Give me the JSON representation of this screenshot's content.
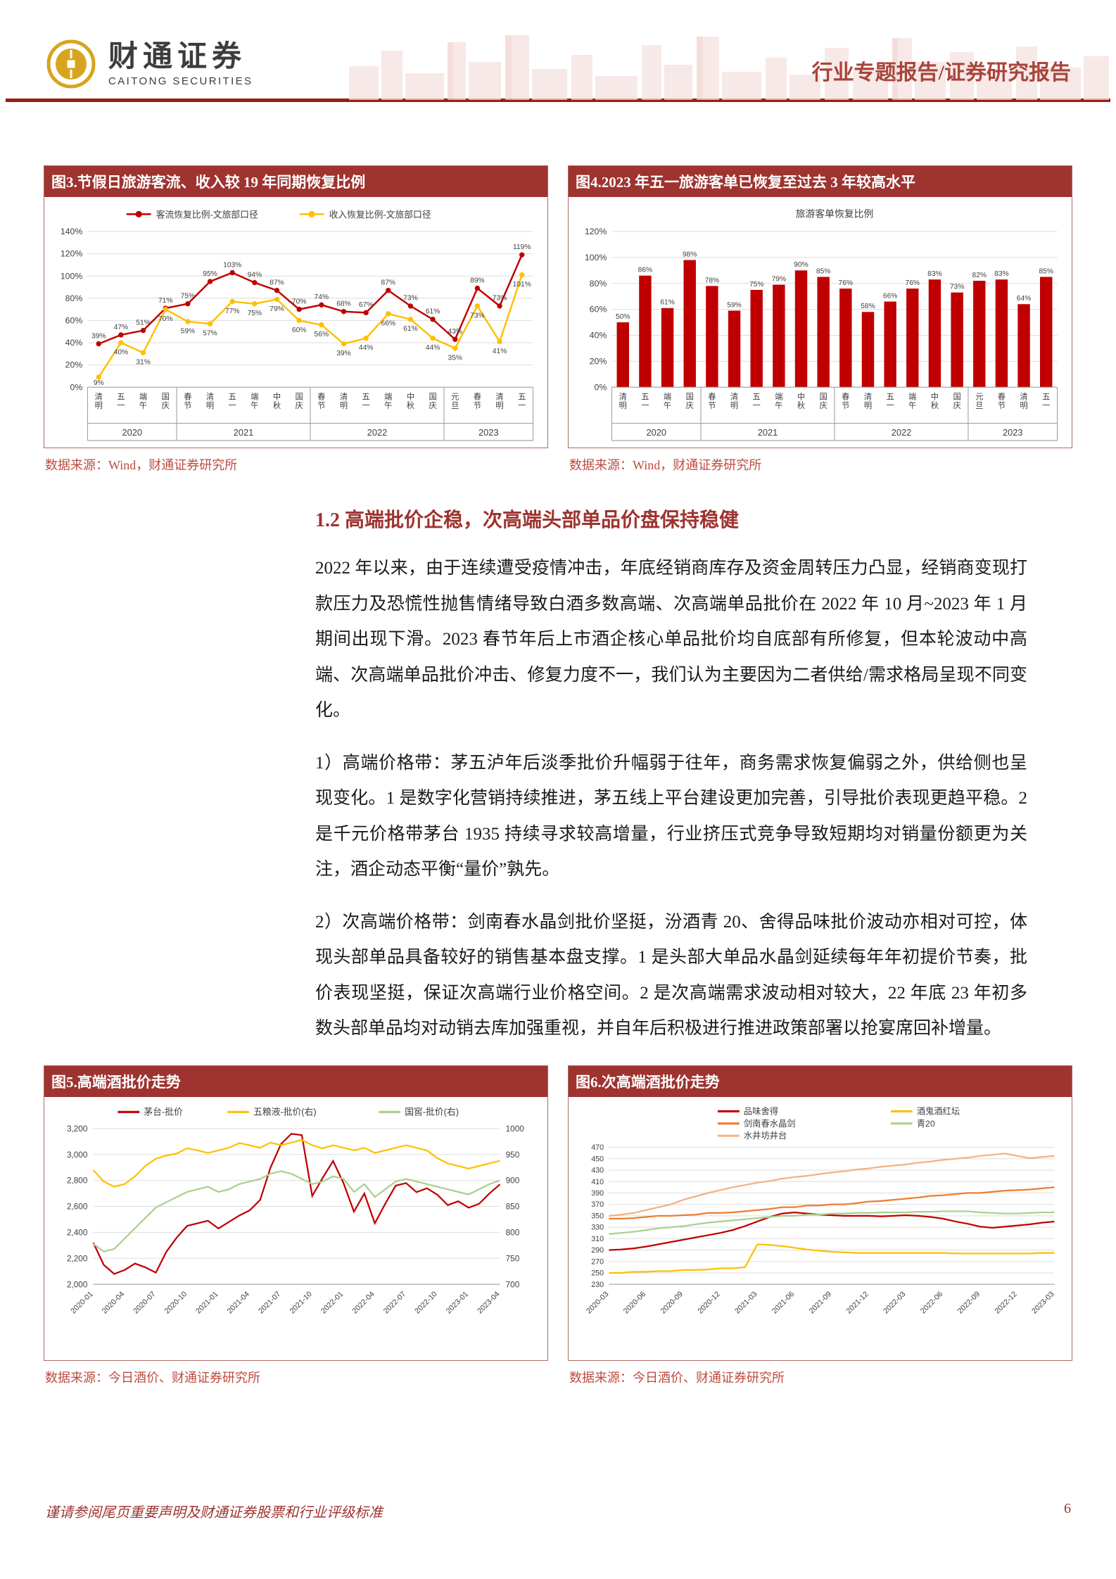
{
  "header": {
    "brand_cn": "财通证券",
    "brand_en": "CAITONG SECURITIES",
    "report_type": "行业专题报告/证券研究报告"
  },
  "section": {
    "heading": "1.2 高端批价企稳，次高端头部单品价盘保持稳健",
    "paragraphs": [
      "2022 年以来，由于连续遭受疫情冲击，年底经销商库存及资金周转压力凸显，经销商变现打款压力及恐慌性抛售情绪导致白酒多数高端、次高端单品批价在 2022 年 10 月~2023 年 1 月期间出现下滑。2023 春节年后上市酒企核心单品批价均自底部有所修复，但本轮波动中高端、次高端单品批价冲击、修复力度不一，我们认为主要因为二者供给/需求格局呈现不同变化。",
      "1）高端价格带：茅五泸年后淡季批价升幅弱于往年，商务需求恢复偏弱之外，供给侧也呈现变化。1 是数字化营销持续推进，茅五线上平台建设更加完善，引导批价表现更趋平稳。2 是千元价格带茅台 1935 持续寻求较高增量，行业挤压式竞争导致短期均对销量份额更为关注，酒企动态平衡“量价”孰先。",
      "2）次高端价格带：剑南春水晶剑批价坚挺，汾酒青 20、舍得品味批价波动亦相对可控，体现头部单品具备较好的销售基本盘支撑。1 是头部大单品水晶剑延续每年年初提价节奏，批价表现坚挺，保证次高端行业价格空间。2 是次高端需求波动相对较大，22 年底 23 年初多数头部单品均对动销去库加强重视，并自年后积极进行推进政策部署以抢宴席回补增量。"
    ]
  },
  "figures": {
    "fig3": {
      "title": "图3.节假日旅游客流、收入较 19 年同期恢复比例",
      "source": "数据来源：Wind，财通证券研究所"
    },
    "fig4": {
      "title": "图4.2023 年五一旅游客单已恢复至过去 3 年较高水平",
      "source": "数据来源：Wind，财通证券研究所"
    },
    "fig5": {
      "title": "图5.高端酒批价走势",
      "source": "数据来源：今日酒价、财通证券研究所"
    },
    "fig6": {
      "title": "图6.次高端酒批价走势",
      "source": "数据来源：今日酒价、财通证券研究所"
    }
  },
  "page": {
    "footer_note": "谨请参阅尾页重要声明及财通证券股票和行业评级标准",
    "number": "6"
  },
  "chart_data": [
    {
      "id": "fig3",
      "type": "line",
      "title": "节假日旅游客流、收入较19年同期恢复比例",
      "ylim": [
        0,
        140
      ],
      "ytick": 20,
      "yformat": "percent",
      "categories": [
        "清明",
        "五一",
        "端午",
        "国庆",
        "春节",
        "清明",
        "五一",
        "端午",
        "中秋",
        "国庆",
        "春节",
        "清明",
        "五一",
        "端午",
        "中秋",
        "国庆",
        "元旦",
        "春节",
        "清明",
        "五一"
      ],
      "year_groups": [
        {
          "label": "2020",
          "span": 4
        },
        {
          "label": "2021",
          "span": 6
        },
        {
          "label": "2022",
          "span": 6
        },
        {
          "label": "2023",
          "span": 4
        }
      ],
      "series": [
        {
          "name": "客流恢复比例-文旅部口径",
          "color": "#C00000",
          "values": [
            39,
            47,
            51,
            71,
            75,
            95,
            103,
            94,
            87,
            70,
            74,
            68,
            67,
            87,
            73,
            61,
            43,
            89,
            73,
            119
          ]
        },
        {
          "name": "收入恢复比例-文旅部口径",
          "color": "#FFC000",
          "values": [
            9,
            40,
            31,
            70,
            59,
            57,
            77,
            75,
            79,
            60,
            56,
            39,
            44,
            66,
            61,
            44,
            35,
            73,
            41,
            101
          ]
        }
      ]
    },
    {
      "id": "fig4",
      "type": "bar",
      "title": "旅游客单恢复比例",
      "ylim": [
        0,
        120
      ],
      "ytick": 20,
      "yformat": "percent",
      "color": "#C00000",
      "categories": [
        "清明",
        "五一",
        "端午",
        "国庆",
        "春节",
        "清明",
        "五一",
        "端午",
        "中秋",
        "国庆",
        "春节",
        "清明",
        "五一",
        "端午",
        "中秋",
        "国庆",
        "元旦",
        "春节",
        "清明",
        "五一"
      ],
      "year_groups": [
        {
          "label": "2020",
          "span": 4
        },
        {
          "label": "2021",
          "span": 6
        },
        {
          "label": "2022",
          "span": 6
        },
        {
          "label": "2023",
          "span": 4
        }
      ],
      "values": [
        50,
        86,
        61,
        98,
        78,
        59,
        75,
        79,
        90,
        85,
        76,
        58,
        66,
        76,
        83,
        73,
        82,
        83,
        64,
        85
      ]
    },
    {
      "id": "fig5",
      "type": "line",
      "title": "高端酒批价走势",
      "ylim_left": [
        2000,
        3200
      ],
      "ytick_left": 200,
      "ylim_right": [
        700,
        1000
      ],
      "ytick_right": 50,
      "x_tick_every": 3,
      "x": [
        "2020-01",
        "2020-02",
        "2020-03",
        "2020-04",
        "2020-05",
        "2020-06",
        "2020-07",
        "2020-08",
        "2020-09",
        "2020-10",
        "2020-11",
        "2020-12",
        "2021-01",
        "2021-02",
        "2021-03",
        "2021-04",
        "2021-05",
        "2021-06",
        "2021-07",
        "2021-08",
        "2021-09",
        "2021-10",
        "2021-11",
        "2021-12",
        "2022-01",
        "2022-02",
        "2022-03",
        "2022-04",
        "2022-05",
        "2022-06",
        "2022-07",
        "2022-08",
        "2022-09",
        "2022-10",
        "2022-11",
        "2022-12",
        "2023-01",
        "2023-02",
        "2023-03",
        "2023-04"
      ],
      "series": [
        {
          "name": "茅台-批价",
          "axis": "left",
          "color": "#C00000",
          "values": [
            2320,
            2150,
            2080,
            2110,
            2160,
            2130,
            2090,
            2250,
            2360,
            2450,
            2470,
            2490,
            2430,
            2480,
            2530,
            2570,
            2650,
            2900,
            3080,
            3160,
            3150,
            2680,
            2820,
            2950,
            2780,
            2560,
            2700,
            2470,
            2620,
            2760,
            2780,
            2710,
            2740,
            2690,
            2610,
            2640,
            2590,
            2620,
            2700,
            2770
          ]
        },
        {
          "name": "五粮液-批价(右)",
          "axis": "right",
          "color": "#FFC000",
          "values": [
            920,
            898,
            888,
            893,
            908,
            928,
            942,
            948,
            952,
            962,
            958,
            953,
            958,
            963,
            972,
            968,
            963,
            973,
            968,
            973,
            978,
            968,
            962,
            968,
            963,
            958,
            963,
            953,
            958,
            963,
            968,
            963,
            958,
            943,
            933,
            928,
            923,
            928,
            933,
            938
          ]
        },
        {
          "name": "国窖-批价(右)",
          "axis": "right",
          "color": "#A9D18E",
          "values": [
            778,
            763,
            768,
            788,
            808,
            828,
            848,
            858,
            868,
            878,
            883,
            888,
            878,
            883,
            893,
            898,
            903,
            913,
            918,
            913,
            903,
            893,
            898,
            908,
            903,
            878,
            893,
            868,
            883,
            898,
            903,
            898,
            893,
            888,
            883,
            878,
            873,
            883,
            893,
            900
          ]
        }
      ]
    },
    {
      "id": "fig6",
      "type": "line",
      "title": "次高端酒批价走势",
      "ylim": [
        230,
        470
      ],
      "ytick": 20,
      "x_tick_every": 3,
      "x": [
        "2020-03",
        "2020-04",
        "2020-05",
        "2020-06",
        "2020-07",
        "2020-08",
        "2020-09",
        "2020-10",
        "2020-11",
        "2020-12",
        "2021-01",
        "2021-02",
        "2021-03",
        "2021-04",
        "2021-05",
        "2021-06",
        "2021-07",
        "2021-08",
        "2021-09",
        "2021-10",
        "2021-11",
        "2021-12",
        "2022-01",
        "2022-02",
        "2022-03",
        "2022-04",
        "2022-05",
        "2022-06",
        "2022-07",
        "2022-08",
        "2022-09",
        "2022-10",
        "2022-11",
        "2022-12",
        "2023-01",
        "2023-02",
        "2023-03"
      ],
      "series": [
        {
          "name": "品味舍得",
          "color": "#C00000",
          "values": [
            290,
            291,
            293,
            296,
            300,
            304,
            308,
            312,
            316,
            320,
            325,
            332,
            340,
            348,
            354,
            356,
            354,
            352,
            351,
            350,
            350,
            350,
            349,
            350,
            351,
            350,
            348,
            345,
            340,
            336,
            331,
            329,
            331,
            333,
            335,
            338,
            340
          ]
        },
        {
          "name": "剑南春水晶剑",
          "color": "#ED7D31",
          "values": [
            345,
            345,
            346,
            348,
            350,
            350,
            351,
            352,
            355,
            355,
            356,
            358,
            360,
            362,
            365,
            365,
            368,
            368,
            370,
            370,
            372,
            375,
            376,
            378,
            380,
            382,
            385,
            386,
            388,
            390,
            390,
            392,
            394,
            395,
            396,
            398,
            400
          ]
        },
        {
          "name": "水井坊井台",
          "color": "#F4B183",
          "values": [
            350,
            352,
            355,
            360,
            365,
            370,
            378,
            384,
            390,
            395,
            400,
            404,
            408,
            411,
            415,
            418,
            420,
            423,
            426,
            428,
            431,
            433,
            436,
            438,
            440,
            443,
            445,
            448,
            450,
            452,
            455,
            457,
            459,
            455,
            451,
            453,
            455
          ]
        },
        {
          "name": "酒鬼酒红坛",
          "color": "#FFC000",
          "values": [
            250,
            250,
            252,
            252,
            253,
            253,
            255,
            255,
            256,
            258,
            258,
            260,
            300,
            299,
            297,
            294,
            291,
            289,
            287,
            286,
            285,
            285,
            285,
            285,
            285,
            285,
            285,
            285,
            284,
            284,
            284,
            284,
            284,
            284,
            284,
            285,
            285
          ]
        },
        {
          "name": "青20",
          "color": "#A9D18E",
          "values": [
            318,
            320,
            322,
            325,
            328,
            330,
            332,
            335,
            338,
            340,
            342,
            344,
            346,
            348,
            350,
            350,
            352,
            352,
            354,
            354,
            355,
            355,
            356,
            356,
            356,
            357,
            357,
            358,
            358,
            358,
            356,
            355,
            354,
            354,
            355,
            356,
            356
          ]
        }
      ]
    }
  ]
}
